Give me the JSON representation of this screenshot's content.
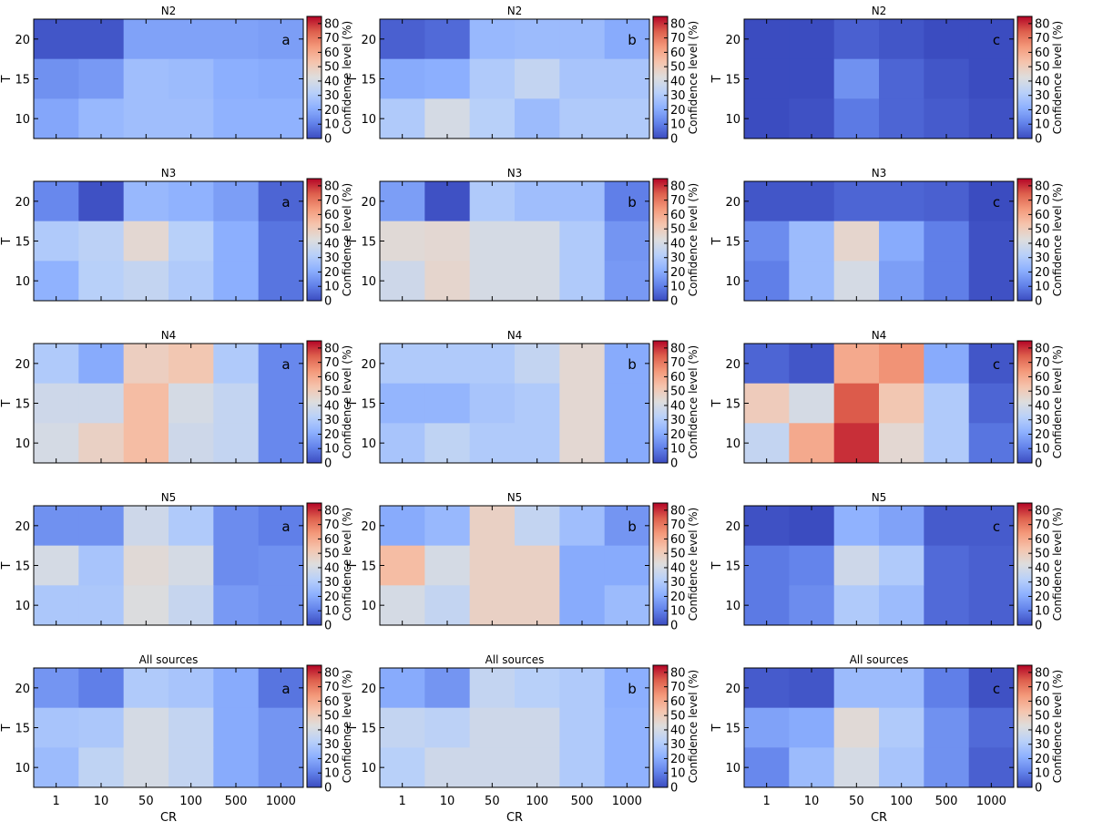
{
  "colormap": "coolwarm",
  "colors": {
    "low": "#3b4cc0",
    "mid": "#dddddd",
    "high": "#b40426"
  },
  "chart_data": {
    "type": "heatmap",
    "xlabel": "CR",
    "ylabel": "T",
    "x_categories": [
      "1",
      "10",
      "50",
      "100",
      "500",
      "1000"
    ],
    "y_categories": [
      "20",
      "15",
      "10"
    ],
    "colorbar": {
      "label": "Confidence level (%)",
      "ticks": [
        "0",
        "10",
        "20",
        "30",
        "40",
        "50",
        "60",
        "70",
        "80"
      ],
      "vmin": 0,
      "vmax": 85
    },
    "rows": [
      "N2",
      "N3",
      "N4",
      "N5",
      "All sources"
    ],
    "columns": [
      "a",
      "b",
      "c"
    ],
    "panels": [
      {
        "title": "N2",
        "tag": "a",
        "values": [
          [
            2,
            2,
            18,
            18,
            18,
            17
          ],
          [
            14,
            16,
            26,
            25,
            21,
            20
          ],
          [
            19,
            24,
            26,
            26,
            22,
            22
          ]
        ]
      },
      {
        "title": "N2",
        "tag": "b",
        "values": [
          [
            4,
            6,
            24,
            25,
            25,
            20
          ],
          [
            20,
            21,
            30,
            35,
            28,
            28
          ],
          [
            30,
            40,
            32,
            25,
            30,
            30
          ]
        ]
      },
      {
        "title": "N2",
        "tag": "c",
        "values": [
          [
            0,
            0,
            4,
            2,
            0,
            0
          ],
          [
            0,
            0,
            14,
            5,
            2,
            0
          ],
          [
            0,
            1,
            9,
            5,
            3,
            1
          ]
        ]
      },
      {
        "title": "N3",
        "tag": "a",
        "values": [
          [
            12,
            1,
            24,
            22,
            17,
            5
          ],
          [
            30,
            33,
            45,
            32,
            21,
            8
          ],
          [
            22,
            32,
            35,
            30,
            21,
            8
          ]
        ]
      },
      {
        "title": "N3",
        "tag": "b",
        "values": [
          [
            17,
            1,
            30,
            26,
            26,
            10
          ],
          [
            44,
            45,
            40,
            40,
            30,
            15
          ],
          [
            38,
            46,
            40,
            40,
            30,
            16
          ]
        ]
      },
      {
        "title": "N3",
        "tag": "c",
        "values": [
          [
            2,
            2,
            5,
            5,
            4,
            0
          ],
          [
            13,
            25,
            46,
            20,
            10,
            1
          ],
          [
            10,
            25,
            40,
            17,
            10,
            1
          ]
        ]
      },
      {
        "title": "N4",
        "tag": "a",
        "values": [
          [
            30,
            20,
            49,
            52,
            30,
            12
          ],
          [
            38,
            38,
            55,
            40,
            35,
            12
          ],
          [
            40,
            48,
            55,
            38,
            35,
            12
          ]
        ]
      },
      {
        "title": "N4",
        "tag": "b",
        "values": [
          [
            30,
            30,
            30,
            35,
            45,
            20
          ],
          [
            23,
            23,
            28,
            30,
            45,
            20
          ],
          [
            28,
            34,
            30,
            30,
            45,
            20
          ]
        ]
      },
      {
        "title": "N4",
        "tag": "c",
        "values": [
          [
            5,
            2,
            60,
            65,
            20,
            2
          ],
          [
            50,
            40,
            75,
            52,
            30,
            5
          ],
          [
            35,
            60,
            80,
            45,
            30,
            8
          ]
        ]
      },
      {
        "title": "N5",
        "tag": "a",
        "values": [
          [
            14,
            14,
            38,
            30,
            13,
            10
          ],
          [
            40,
            28,
            44,
            40,
            13,
            14
          ],
          [
            29,
            29,
            42,
            36,
            16,
            14
          ]
        ]
      },
      {
        "title": "N5",
        "tag": "b",
        "values": [
          [
            20,
            24,
            48,
            35,
            26,
            15
          ],
          [
            55,
            40,
            48,
            48,
            20,
            20
          ],
          [
            40,
            35,
            48,
            48,
            20,
            25
          ]
        ]
      },
      {
        "title": "N5",
        "tag": "c",
        "values": [
          [
            1,
            0,
            22,
            18,
            3,
            3
          ],
          [
            9,
            11,
            38,
            30,
            6,
            4
          ],
          [
            9,
            13,
            30,
            25,
            6,
            4
          ]
        ]
      },
      {
        "title": "All sources",
        "tag": "a",
        "values": [
          [
            15,
            10,
            30,
            28,
            20,
            8
          ],
          [
            28,
            29,
            40,
            35,
            20,
            15
          ],
          [
            25,
            34,
            40,
            35,
            20,
            15
          ]
        ]
      },
      {
        "title": "All sources",
        "tag": "b",
        "values": [
          [
            20,
            15,
            35,
            32,
            30,
            21
          ],
          [
            35,
            33,
            38,
            38,
            30,
            22
          ],
          [
            32,
            38,
            38,
            38,
            30,
            22
          ]
        ]
      },
      {
        "title": "All sources",
        "tag": "c",
        "values": [
          [
            3,
            2,
            25,
            25,
            10,
            1
          ],
          [
            18,
            20,
            44,
            30,
            14,
            6
          ],
          [
            12,
            25,
            40,
            28,
            14,
            4
          ]
        ]
      }
    ]
  }
}
